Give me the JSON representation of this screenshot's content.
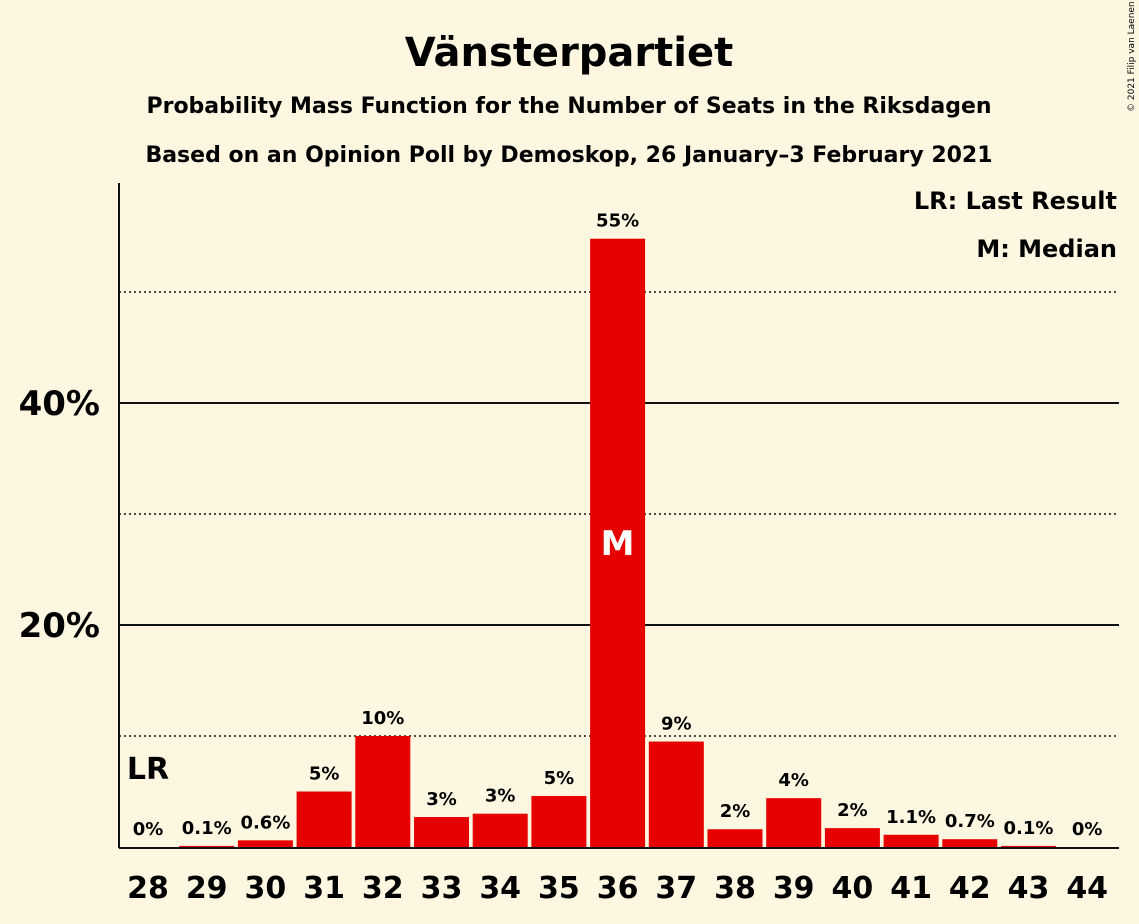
{
  "chart_data": {
    "type": "bar",
    "title": "Vänsterpartiet",
    "subtitle": "Probability Mass Function for the Number of Seats in the Riksdagen",
    "subtitle2": "Based on an Opinion Poll by Demoskop, 26 January–3 February 2021",
    "categories": [
      "28",
      "29",
      "30",
      "31",
      "32",
      "33",
      "34",
      "35",
      "36",
      "37",
      "38",
      "39",
      "40",
      "41",
      "42",
      "43",
      "44"
    ],
    "values": [
      0,
      0.1,
      0.6,
      5,
      10,
      2.7,
      3,
      4.6,
      54.8,
      9.5,
      1.6,
      4.4,
      1.7,
      1.1,
      0.7,
      0.1,
      0
    ],
    "labels": [
      "0%",
      "0.1%",
      "0.6%",
      "5%",
      "10%",
      "3%",
      "3%",
      "5%",
      "55%",
      "9%",
      "2%",
      "4%",
      "2%",
      "1.1%",
      "0.7%",
      "0.1%",
      "0%"
    ],
    "ylim": [
      0,
      60
    ],
    "ytick_values": [
      20,
      40
    ],
    "ytick_labels": [
      "20%",
      "40%"
    ],
    "grid_solid": [
      20,
      40
    ],
    "grid_dotted": [
      10,
      30,
      50
    ],
    "bar_color": "#e60000",
    "last_result_index": 0,
    "last_result_label": "LR",
    "median_index": 8,
    "median_label": "M",
    "legend": [
      "LR: Last Result",
      "M: Median"
    ],
    "legend_position": "top-right",
    "copyright": "© 2021 Filip van Laenen"
  }
}
